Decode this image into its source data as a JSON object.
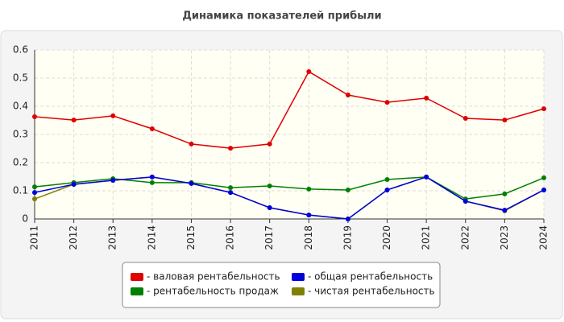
{
  "chart_data": {
    "type": "line",
    "title": "Динамика показателей прибыли",
    "categories": [
      "2011",
      "2012",
      "2013",
      "2014",
      "2015",
      "2016",
      "2017",
      "2018",
      "2019",
      "2020",
      "2021",
      "2022",
      "2023",
      "2024"
    ],
    "series": [
      {
        "name": "- валовая рентабельность",
        "color": "#e00000",
        "values": [
          0.363,
          0.351,
          0.366,
          0.32,
          0.266,
          0.251,
          0.266,
          0.523,
          0.44,
          0.414,
          0.429,
          0.357,
          0.351,
          0.391
        ]
      },
      {
        "name": "- общая рентабельность",
        "color": "#0000e0",
        "values": [
          0.094,
          0.123,
          0.137,
          0.149,
          0.126,
          0.094,
          0.04,
          0.014,
          0.0,
          0.103,
          0.149,
          0.063,
          0.031,
          0.103
        ]
      },
      {
        "name": "- рентабельность продаж",
        "color": "#008000",
        "values": [
          0.114,
          0.129,
          0.143,
          0.129,
          0.129,
          0.111,
          0.117,
          0.106,
          0.103,
          0.14,
          0.149,
          0.071,
          0.089,
          0.146
        ]
      },
      {
        "name": "- чистая рентабельность",
        "color": "#808000",
        "values": [
          0.071,
          0.123,
          0.137,
          0.149,
          0.126,
          0.094,
          0.04,
          0.014,
          0.0,
          0.103,
          0.149,
          0.063,
          0.029,
          0.103
        ]
      }
    ],
    "ylim": [
      0,
      0.6
    ],
    "yticks": [
      0,
      0.1,
      0.2,
      0.3,
      0.4,
      0.5,
      0.6
    ],
    "grid": true
  }
}
